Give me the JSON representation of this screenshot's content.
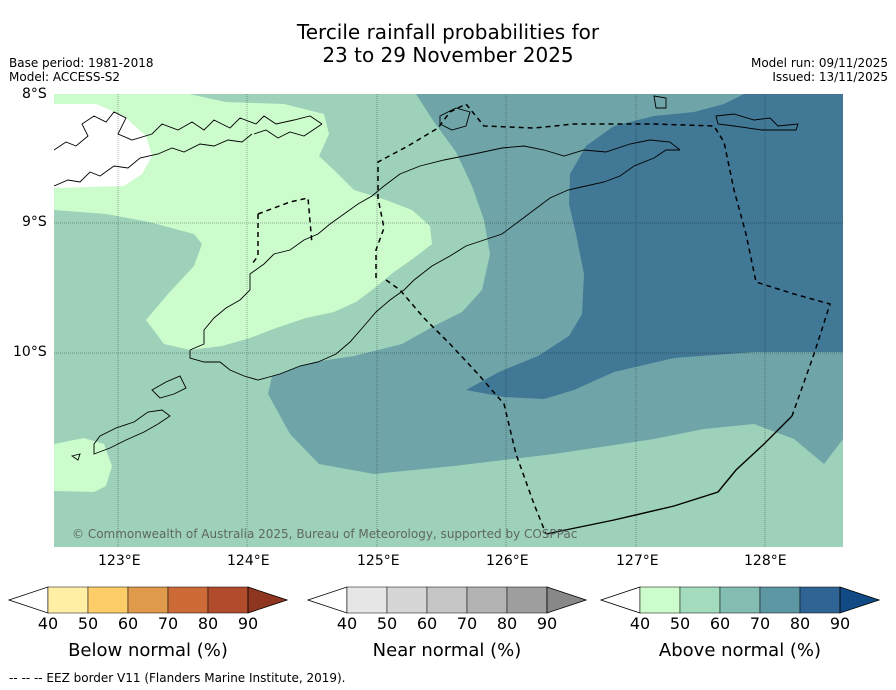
{
  "title": {
    "line1": "Tercile rainfall probabilities for",
    "line2": "23 to 29 November 2025"
  },
  "meta": {
    "base_period": "Base period: 1981-2018",
    "model": "Model: ACCESS-S2",
    "model_run": "Model run: 09/11/2025",
    "issued": "Issued: 13/11/2025"
  },
  "axes": {
    "lat_labels": [
      "8°S",
      "9°S",
      "10°S"
    ],
    "lon_labels": [
      "123°E",
      "124°E",
      "125°E",
      "126°E",
      "127°E",
      "128°E"
    ]
  },
  "copyright": "© Commonwealth of Australia 2025, Bureau of Meteorology, supported by COSPPac",
  "legends": [
    {
      "title": "Below normal (%)",
      "ticks": [
        "40",
        "50",
        "60",
        "70",
        "80",
        "90"
      ],
      "colors": [
        "#fff0a6",
        "#fdcd6a",
        "#e09a4c",
        "#cc6a38",
        "#b04c2b",
        "#8e3620"
      ]
    },
    {
      "title": "Near normal (%)",
      "ticks": [
        "40",
        "50",
        "60",
        "70",
        "80",
        "90"
      ],
      "colors": [
        "#e6e6e6",
        "#d6d6d6",
        "#c6c6c6",
        "#b3b3b3",
        "#9e9e9e",
        "#888888"
      ]
    },
    {
      "title": "Above normal (%)",
      "ticks": [
        "40",
        "50",
        "60",
        "70",
        "80",
        "90"
      ],
      "colors": [
        "#ccfccc",
        "#a3dbbd",
        "#83bcb0",
        "#5e97a4",
        "#2e6394",
        "#114a84"
      ]
    }
  ],
  "footer": "--  --  -- EEZ border V11 (Flanders Marine Institute, 2019).",
  "map_colors": {
    "c40": "#ccfccc",
    "c50": "#9dd1b9",
    "c60": "#6fa5a8",
    "c70": "#417896",
    "land_white": "#ffffff"
  }
}
